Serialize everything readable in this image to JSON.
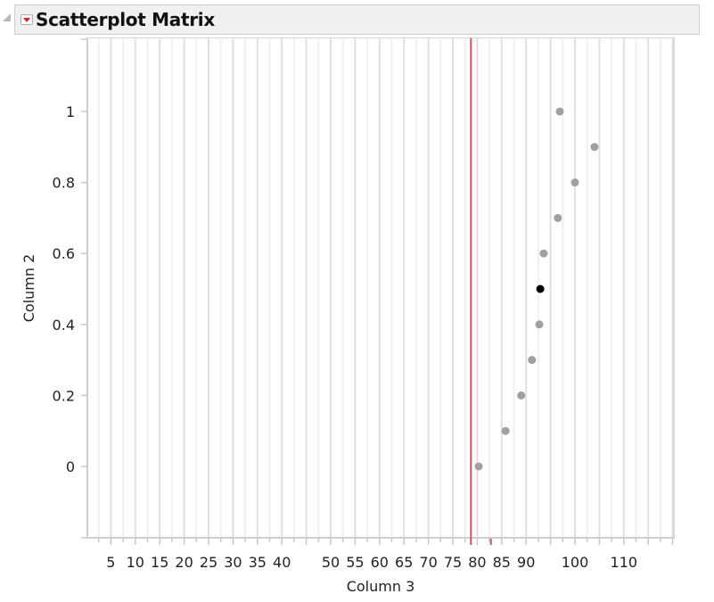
{
  "header": {
    "title": "Scatterplot Matrix",
    "toggle_icon": "disclosure-triangle-icon",
    "menu_icon": "red-triangle-menu-icon"
  },
  "colors": {
    "point": "#a0a0a0",
    "selected_point": "#000000",
    "reference_line": "#d9505f",
    "grid_major": "#e0e0e0",
    "grid_minor": "#f0f0f0",
    "header_bg": "#f0f0f0"
  },
  "chart_data": {
    "type": "scatter",
    "title": "Scatterplot Matrix",
    "xlabel": "Column 3",
    "ylabel": "Column 2",
    "xlim": [
      0,
      120
    ],
    "ylim": [
      -0.2,
      1.2
    ],
    "x_tick_labels": [
      "5",
      "10",
      "15",
      "20",
      "25",
      "30",
      "35",
      "40",
      "50",
      "55",
      "60",
      "65",
      "70",
      "75",
      "80",
      "85",
      "90",
      "100",
      "110"
    ],
    "x_tick_values": [
      5,
      10,
      15,
      20,
      25,
      30,
      35,
      40,
      50,
      55,
      60,
      65,
      70,
      75,
      80,
      85,
      90,
      100,
      110
    ],
    "y_tick_labels": [
      "0",
      "0.2",
      "0.4",
      "0.6",
      "0.8",
      "1"
    ],
    "y_tick_values": [
      0,
      0.2,
      0.4,
      0.6,
      0.8,
      1
    ],
    "grid": true,
    "grid_step_x": 2.5,
    "reference_line_x": 78.7,
    "reference_tick_x": 82.8,
    "points": [
      {
        "x": 80.3,
        "y": 0.0,
        "selected": false
      },
      {
        "x": 85.8,
        "y": 0.1,
        "selected": false
      },
      {
        "x": 89.0,
        "y": 0.2,
        "selected": false
      },
      {
        "x": 91.2,
        "y": 0.3,
        "selected": false
      },
      {
        "x": 92.7,
        "y": 0.4,
        "selected": false
      },
      {
        "x": 92.9,
        "y": 0.5,
        "selected": true
      },
      {
        "x": 93.6,
        "y": 0.6,
        "selected": false
      },
      {
        "x": 96.5,
        "y": 0.7,
        "selected": false
      },
      {
        "x": 100.0,
        "y": 0.8,
        "selected": false
      },
      {
        "x": 104.0,
        "y": 0.9,
        "selected": false
      },
      {
        "x": 96.9,
        "y": 1.0,
        "selected": false
      }
    ]
  }
}
